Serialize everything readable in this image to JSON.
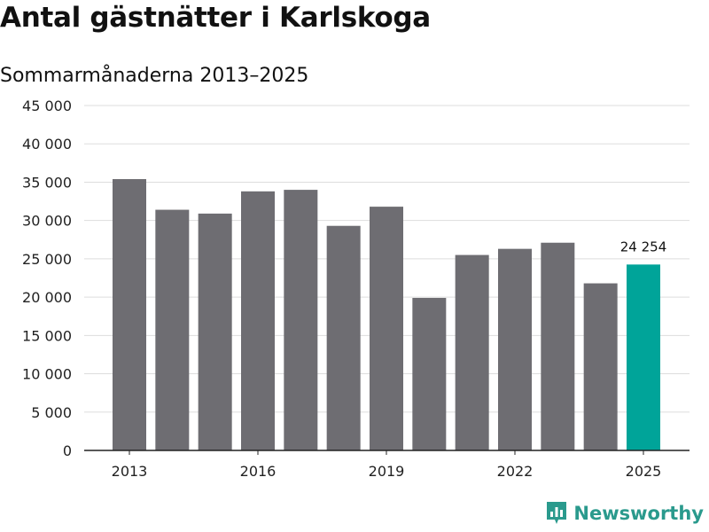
{
  "chart_data": {
    "type": "bar",
    "title": "Antal gästnätter i Karlskoga",
    "subtitle": "Sommarmånaderna 2013–2025",
    "categories": [
      "2013",
      "2014",
      "2015",
      "2016",
      "2017",
      "2018",
      "2019",
      "2020",
      "2021",
      "2022",
      "2023",
      "2024",
      "2025"
    ],
    "x_tick_labels": [
      "2013",
      "2016",
      "2019",
      "2022",
      "2025"
    ],
    "values": [
      35400,
      31400,
      30900,
      33800,
      34000,
      29300,
      31800,
      19900,
      25500,
      26300,
      27100,
      21800,
      24254
    ],
    "highlight": {
      "category": "2025",
      "label": "24 254"
    },
    "y_ticks": [
      "0",
      "5 000",
      "10 000",
      "15 000",
      "20 000",
      "25 000",
      "30 000",
      "35 000",
      "40 000",
      "45 000"
    ],
    "ylim": [
      0,
      45000
    ],
    "xlabel": "",
    "ylabel": "",
    "grid": true,
    "colors": {
      "bar": "#6e6d72",
      "highlight": "#00a499",
      "grid": "#dddddd",
      "axis": "#222222"
    }
  },
  "logo": {
    "text": "Newsworthy",
    "icon": "bar-chart-icon"
  }
}
